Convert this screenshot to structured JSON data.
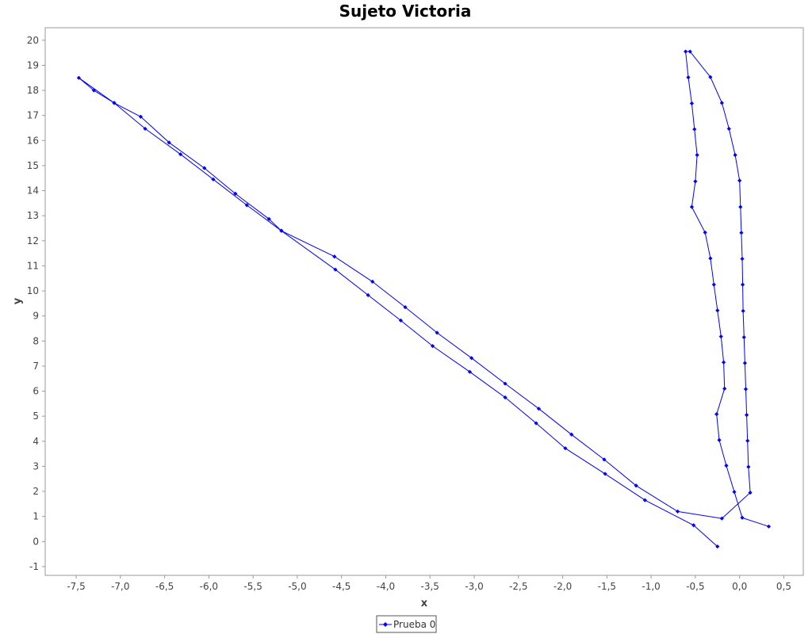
{
  "chart_data": {
    "type": "line",
    "title": "Sujeto Victoria",
    "xlabel": "x",
    "ylabel": "y",
    "xlim": [
      -7.85,
      0.72
    ],
    "ylim": [
      -1.35,
      20.5
    ],
    "grid": false,
    "legend_position": "bottom-center",
    "x_ticks": [
      "-7,5",
      "-7,0",
      "-6,5",
      "-6,0",
      "-5,5",
      "-5,0",
      "-4,5",
      "-4,0",
      "-3,5",
      "-3,0",
      "-2,5",
      "-2,0",
      "-1,5",
      "-1,0",
      "-0,5",
      "0,0",
      "0,5"
    ],
    "y_ticks": [
      "20",
      "19",
      "18",
      "17",
      "16",
      "15",
      "14",
      "13",
      "12",
      "11",
      "10",
      "9",
      "8",
      "7",
      "6",
      "5",
      "4",
      "3",
      "2",
      "1",
      "0",
      "-1"
    ],
    "series": [
      {
        "name": "Prueba 0",
        "color": "#0000ff",
        "marker": "diamond",
        "points": [
          [
            -0.25,
            -0.2
          ],
          [
            -0.52,
            0.65
          ],
          [
            -1.07,
            1.65
          ],
          [
            -1.52,
            2.7
          ],
          [
            -1.97,
            3.72
          ],
          [
            -2.3,
            4.72
          ],
          [
            -2.65,
            5.75
          ],
          [
            -3.05,
            6.77
          ],
          [
            -3.47,
            7.8
          ],
          [
            -3.83,
            8.82
          ],
          [
            -4.2,
            9.83
          ],
          [
            -4.57,
            10.85
          ],
          [
            -5.18,
            12.4
          ],
          [
            -5.57,
            13.42
          ],
          [
            -5.95,
            14.45
          ],
          [
            -6.32,
            15.45
          ],
          [
            -6.72,
            16.47
          ],
          [
            -7.07,
            17.5
          ],
          [
            -7.3,
            18.0
          ],
          [
            -7.47,
            18.5
          ],
          [
            -7.07,
            17.5
          ],
          [
            -6.77,
            16.95
          ],
          [
            -6.45,
            15.92
          ],
          [
            -6.05,
            14.9
          ],
          [
            -5.7,
            13.88
          ],
          [
            -5.32,
            12.87
          ],
          [
            -5.18,
            12.4
          ],
          [
            -4.58,
            11.37
          ],
          [
            -4.15,
            10.37
          ],
          [
            -3.78,
            9.35
          ],
          [
            -3.42,
            8.33
          ],
          [
            -3.03,
            7.32
          ],
          [
            -2.65,
            6.3
          ],
          [
            -2.27,
            5.3
          ],
          [
            -1.9,
            4.27
          ],
          [
            -1.53,
            3.27
          ],
          [
            -1.17,
            2.23
          ],
          [
            -0.7,
            1.2
          ],
          [
            -0.2,
            0.92
          ],
          [
            0.12,
            1.95
          ],
          [
            0.1,
            2.98
          ],
          [
            0.09,
            4.02
          ],
          [
            0.08,
            5.05
          ],
          [
            0.07,
            6.08
          ],
          [
            0.06,
            7.12
          ],
          [
            0.05,
            8.15
          ],
          [
            0.04,
            9.2
          ],
          [
            0.035,
            10.25
          ],
          [
            0.03,
            11.28
          ],
          [
            0.02,
            12.32
          ],
          [
            0.01,
            13.35
          ],
          [
            0.0,
            14.4
          ],
          [
            -0.05,
            15.42
          ],
          [
            -0.12,
            16.47
          ],
          [
            -0.2,
            17.5
          ],
          [
            -0.33,
            18.53
          ],
          [
            -0.56,
            19.55
          ],
          [
            -0.61,
            19.55
          ],
          [
            -0.58,
            18.52
          ],
          [
            -0.54,
            17.48
          ],
          [
            -0.51,
            16.45
          ],
          [
            -0.48,
            15.42
          ],
          [
            -0.5,
            14.37
          ],
          [
            -0.54,
            13.35
          ],
          [
            -0.39,
            12.33
          ],
          [
            -0.33,
            11.3
          ],
          [
            -0.29,
            10.25
          ],
          [
            -0.25,
            9.22
          ],
          [
            -0.21,
            8.18
          ],
          [
            -0.18,
            7.15
          ],
          [
            -0.17,
            6.1
          ],
          [
            -0.26,
            5.08
          ],
          [
            -0.23,
            4.05
          ],
          [
            -0.15,
            3.03
          ],
          [
            -0.06,
            1.98
          ],
          [
            0.03,
            0.95
          ],
          [
            0.33,
            0.6
          ]
        ]
      }
    ]
  }
}
